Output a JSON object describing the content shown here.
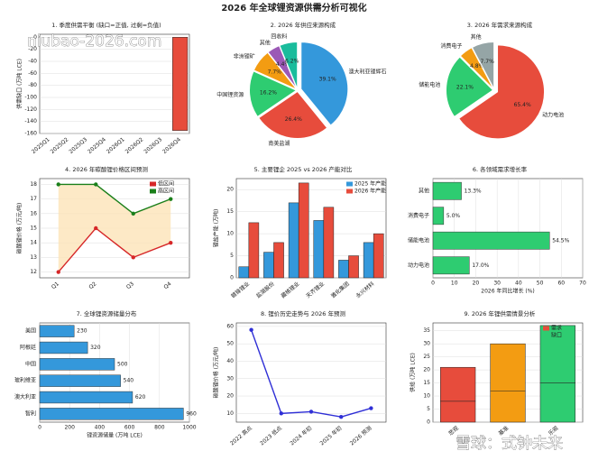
{
  "title": "2026 年全球锂资源供需分析可视化",
  "watermarks": [
    "niubao-2026.com",
    "雪球：式钟未来"
  ],
  "chart_data": [
    {
      "type": "bar",
      "title": "1. 季度供需平衡 (缺口=正值, 过剩=负值)",
      "categories": [
        "2025Q1",
        "2025Q2",
        "2025Q3",
        "2025Q4",
        "2026Q1",
        "2026Q2",
        "2026Q3",
        "2026Q4"
      ],
      "series": [
        {
          "color": "#e74c3c",
          "values": [
            0,
            0,
            0,
            0,
            0,
            0,
            0,
            -155
          ]
        }
      ],
      "ylim": [
        -160,
        5
      ],
      "yticks": [
        0,
        -20,
        -40,
        -60,
        -80,
        -100,
        -120,
        -140,
        -160
      ],
      "ylabel": "供需缺口 (万吨 LCE)",
      "grid": true
    },
    {
      "type": "pie",
      "title": "2. 2026 年供应来源构成",
      "categories": [
        "澳大利亚锂辉石",
        "南美盐湖",
        "中国锂资源",
        "非洲锂矿",
        "其他",
        "回收料"
      ],
      "values": [
        39.1,
        26.4,
        16.2,
        7.7,
        4.4,
        6.2
      ],
      "value_labels": [
        "39.1%",
        "26.4%",
        "16.2%",
        "7.7%",
        "4.4%",
        "6.2%"
      ],
      "colors": [
        "#3498db",
        "#e74c3c",
        "#2ecc71",
        "#f39c12",
        "#9b59b6",
        "#1abc9c"
      ]
    },
    {
      "type": "pie",
      "title": "3. 2026 年需求来源构成",
      "categories": [
        "动力电池",
        "储能电池",
        "消费电子",
        "其他"
      ],
      "values": [
        65.4,
        22.1,
        4.8,
        7.7
      ],
      "value_labels": [
        "65.4%",
        "22.1%",
        "4.8%",
        "7.7%"
      ],
      "colors": [
        "#e74c3c",
        "#2ecc71",
        "#f39c12",
        "#95a5a6"
      ]
    },
    {
      "type": "line",
      "title": "4. 2026 年碳酸锂价格区间预测",
      "categories": [
        "Q1",
        "Q2",
        "Q3",
        "Q4"
      ],
      "series": [
        {
          "name": "低区间",
          "color": "#d62728",
          "values": [
            12,
            15,
            13,
            14
          ]
        },
        {
          "name": "高区间",
          "color": "#1a7f1a",
          "values": [
            18,
            18,
            16,
            17
          ]
        }
      ],
      "ylim": [
        11.6,
        18.4
      ],
      "yticks": [
        12,
        13,
        14,
        15,
        16,
        17,
        18
      ],
      "ylabel": "碳酸锂价格 (万元/吨)",
      "fill_between": true,
      "fill_color": "#fde3b8",
      "grid": true
    },
    {
      "type": "bar",
      "title": "5. 主要锂企 2025 vs 2026 产能对比",
      "categories": [
        "赣锋锂业",
        "盐湖股份",
        "藏格锂业",
        "天齐锂业",
        "雅化集团",
        "永兴材料"
      ],
      "series": [
        {
          "name": "2025 年产能",
          "color": "#3498db",
          "values": [
            2.5,
            5.8,
            17,
            13,
            4,
            8
          ]
        },
        {
          "name": "2026 年产能",
          "color": "#e74c3c",
          "values": [
            12.5,
            8,
            21.5,
            16,
            5,
            10
          ]
        }
      ],
      "ylim": [
        0,
        22.5
      ],
      "yticks": [
        0,
        5,
        10,
        15,
        20
      ],
      "ylabel": "锂盐产能 (万吨)",
      "grid": true
    },
    {
      "type": "hbar",
      "title": "6. 各领域需求增长率",
      "categories": [
        "其他",
        "消费电子",
        "储能电池",
        "动力电池"
      ],
      "series": [
        {
          "color": "#2ecc71",
          "values": [
            13.3,
            5,
            54.5,
            17
          ],
          "value_labels": [
            "13.3%",
            "5.0%",
            "54.5%",
            "17.0%"
          ]
        }
      ],
      "xlim": [
        0,
        70
      ],
      "xticks": [
        0,
        10,
        20,
        30,
        40,
        50,
        60,
        70
      ],
      "xlabel": "2026 年同比增长 (%)",
      "grid": true
    },
    {
      "type": "hbar",
      "title": "7. 全球锂资源储量分布",
      "categories": [
        "美国",
        "阿根廷",
        "中国",
        "玻利维亚",
        "澳大利亚",
        "智利"
      ],
      "series": [
        {
          "color": "#3498db",
          "values": [
            230,
            320,
            500,
            540,
            620,
            960
          ]
        }
      ],
      "xlim": [
        0,
        1000
      ],
      "xticks": [
        0,
        200,
        400,
        600,
        800,
        1000
      ],
      "xlabel": "锂资源储量 (万吨 LCE)",
      "grid": true
    },
    {
      "type": "line",
      "title": "8. 锂价历史走势与 2026 年预测",
      "categories": [
        "2022 高点",
        "2023 低点",
        "2024 年初",
        "2025 年初",
        "2026 预测"
      ],
      "series": [
        {
          "color": "#2f2fd6",
          "values": [
            58,
            10,
            11,
            8,
            13
          ]
        }
      ],
      "ylim": [
        5,
        62
      ],
      "yticks": [
        10,
        20,
        30,
        40,
        50,
        60
      ],
      "ylabel": "碳酸锂价格 (万元/吨)",
      "grid": true
    },
    {
      "type": "bar",
      "title": "9. 2026 年锂供需情景分析",
      "categories": [
        "悲观",
        "基准",
        "乐观"
      ],
      "series": [
        {
          "name": "需求",
          "color": "#e74c3c",
          "values": [
            8,
            12,
            15
          ]
        },
        {
          "name": "缺口",
          "color": "#2ecc71",
          "values": [
            13,
            18,
            22
          ]
        }
      ],
      "colors": [
        "#e74c3c",
        "#f39c12",
        "#2ecc71"
      ],
      "stacked": true,
      "ylim": [
        0,
        38
      ],
      "yticks": [
        0,
        5,
        10,
        15,
        20,
        25,
        30,
        35
      ],
      "ylabel": "供给 (万吨 LCE)",
      "grid": true
    }
  ]
}
